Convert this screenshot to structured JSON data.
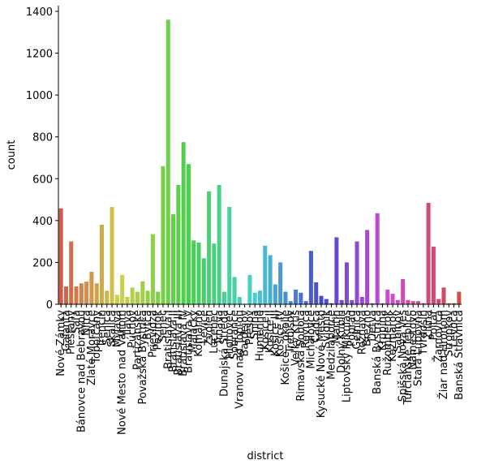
{
  "chart_data": {
    "type": "bar",
    "x_label": "district",
    "y_label": "count",
    "palette": "husl",
    "categories": [
      "Nové Zámky",
      "Galanta",
      "Piešťany",
      "Šaľa",
      "Bánovce nad Bebravou",
      "Nitra",
      "Zlaté Moravce",
      "Topoľčany",
      "Trenčín",
      "Senica",
      "Skalica",
      "Myjava",
      "Nové Mesto nad Váhom",
      "Ilava",
      "Púchov",
      "Partizánske",
      "Považská Bystrica",
      "Bytča",
      "Prievidza",
      "Pezinok",
      "Senec",
      "Bratislava I",
      "Bratislava II",
      "Bratislava III",
      "Bratislava IV",
      "Bratislava V",
      "Malacky",
      "Komárno",
      "Levice",
      "Zvolen",
      "Lučenec",
      "Trnava",
      "Dunajská Streda",
      "Hlohovec",
      "Sobrance",
      "Vranov nad Topľou",
      "Bardejov",
      "Prešov",
      "Snina",
      "Humenné",
      "Košice I",
      "Košice II",
      "Košice III",
      "Košice IV",
      "Košice - okolie",
      "Trebišov",
      "Veľký Krtíš",
      "Rimavská Sobota",
      "Revúca",
      "Michalovce",
      "Čadca",
      "Kysucké Nové Mesto",
      "Svidník",
      "Medzilaborce",
      "Martin",
      "Dolný Kubín",
      "Liptovský Mikuláš",
      "Poprad",
      "Gelnica",
      "Rožňava",
      "Brezno",
      "Detva",
      "Banská Bystrica",
      "Krupina",
      "Ružomberok",
      "Kežmarok",
      "Sabinov",
      "Spišská Nová Ves",
      "Turčianske Teplice",
      "Námestovo",
      "Stará Ľubovňa",
      "Tvrdošín",
      "Žilina",
      "Poltár",
      "Žarnovica",
      "Žiar nad Hronom",
      "Stropkov",
      "Levoča",
      "Banská Štiavnica"
    ],
    "values": [
      458,
      85,
      300,
      85,
      100,
      108,
      155,
      100,
      380,
      65,
      465,
      45,
      140,
      35,
      80,
      60,
      110,
      65,
      335,
      60,
      660,
      1360,
      430,
      570,
      775,
      670,
      305,
      295,
      220,
      540,
      290,
      570,
      60,
      465,
      130,
      35,
      0,
      140,
      55,
      65,
      280,
      235,
      95,
      200,
      60,
      15,
      70,
      55,
      15,
      255,
      105,
      40,
      25,
      5,
      320,
      20,
      200,
      20,
      300,
      35,
      355,
      5,
      435,
      5,
      70,
      50,
      20,
      120,
      20,
      15,
      15,
      5,
      485,
      275,
      25,
      80,
      5,
      5,
      60
    ],
    "ylim": [
      0,
      1427
    ],
    "yticks": [
      0,
      200,
      400,
      600,
      800,
      1000,
      1200,
      1400
    ]
  }
}
